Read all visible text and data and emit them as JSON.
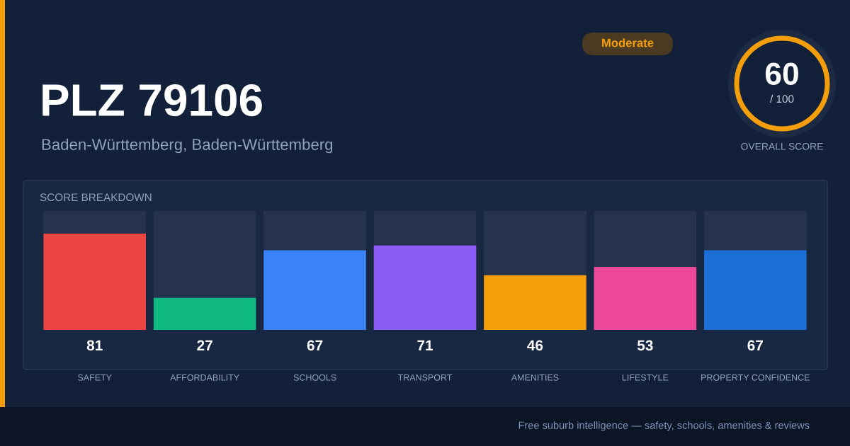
{
  "chart_data": {
    "type": "bar",
    "title": "PLZ 79106",
    "subtitle": "Baden-Württemberg, Baden-Württemberg",
    "categories": [
      "SAFETY",
      "AFFORDABILITY",
      "SCHOOLS",
      "TRANSPORT",
      "AMENITIES",
      "LIFESTYLE",
      "PROPERTY CONFIDENCE"
    ],
    "values": [
      81,
      27,
      67,
      71,
      46,
      53,
      67
    ],
    "colors": [
      "#ef4444",
      "#10b981",
      "#3b82f6",
      "#8b5cf6",
      "#f59e0b",
      "#ec4899",
      "#1d6fd8"
    ],
    "ylim": [
      0,
      100
    ],
    "data_labels": true,
    "tick_labels": "x",
    "grid": false,
    "legend": false,
    "annotations": [
      "SCORE BREAKDOWN",
      "Moderate",
      "60",
      "/ 100",
      "OVERALL SCORE",
      "Free suburb intelligence — safety, schools, amenities & reviews"
    ]
  }
}
